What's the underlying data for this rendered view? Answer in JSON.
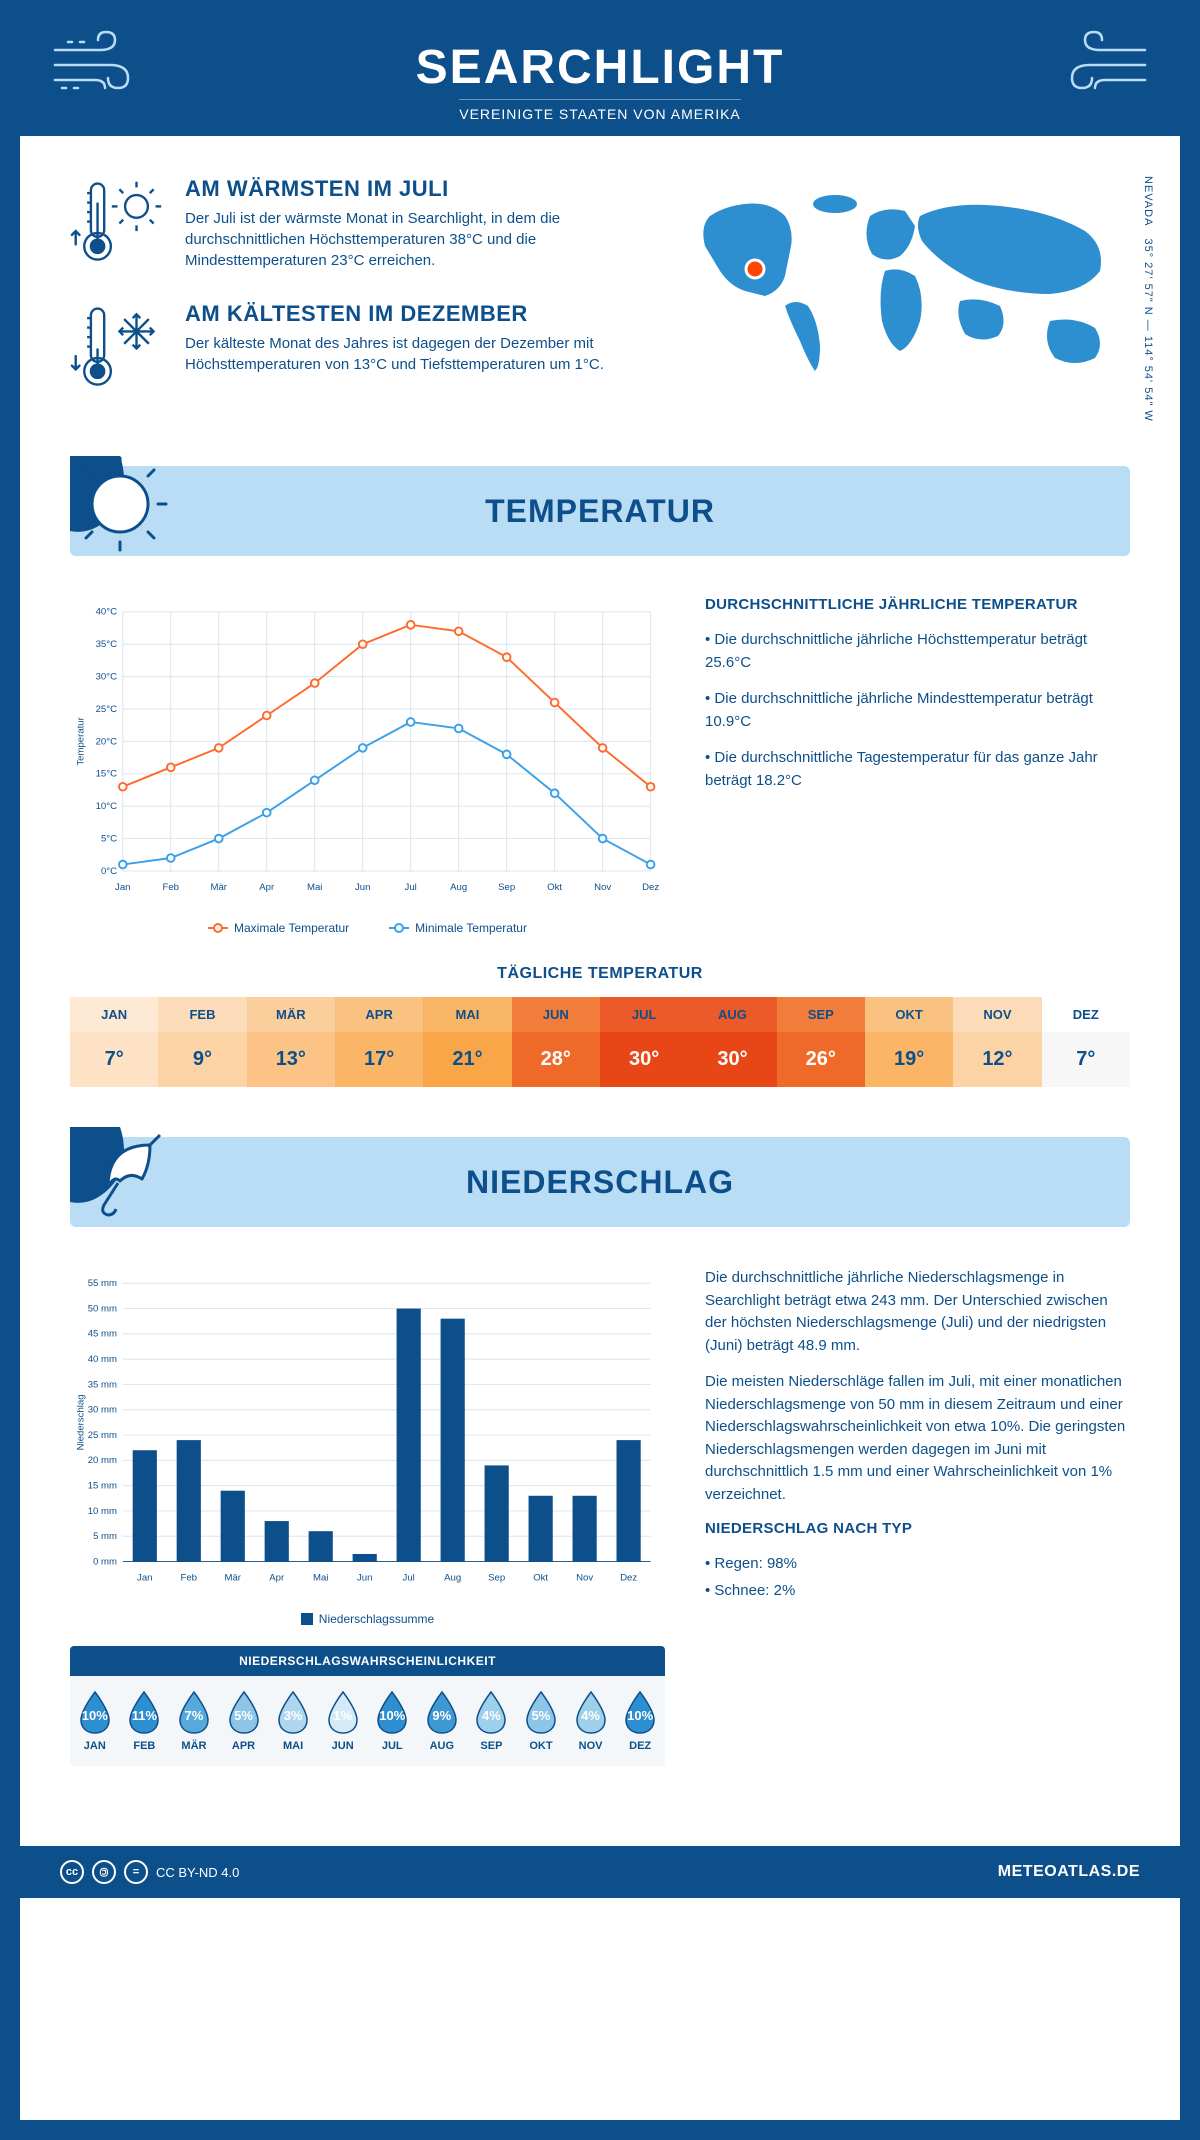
{
  "header": {
    "title": "SEARCHLIGHT",
    "subtitle": "VEREINIGTE STAATEN VON AMERIKA"
  },
  "location": {
    "state": "NEVADA",
    "coords": "35° 27' 57\" N — 114° 54' 54\" W",
    "marker_color": "#ff4500",
    "map_color": "#2e8fd0"
  },
  "summaries": {
    "warm": {
      "title": "AM WÄRMSTEN IM JULI",
      "text": "Der Juli ist der wärmste Monat in Searchlight, in dem die durchschnittlichen Höchsttemperaturen 38°C und die Mindesttemperaturen 23°C erreichen."
    },
    "cold": {
      "title": "AM KÄLTESTEN IM DEZEMBER",
      "text": "Der kälteste Monat des Jahres ist dagegen der Dezember mit Höchsttemperaturen von 13°C und Tiefsttemperaturen um 1°C."
    }
  },
  "temperature_section": {
    "banner_title": "TEMPERATUR",
    "chart": {
      "type": "line",
      "x_labels": [
        "Jan",
        "Feb",
        "Mär",
        "Apr",
        "Mai",
        "Jun",
        "Jul",
        "Aug",
        "Sep",
        "Okt",
        "Nov",
        "Dez"
      ],
      "y_ticks": [
        0,
        5,
        10,
        15,
        20,
        25,
        30,
        35,
        40
      ],
      "y_tick_labels": [
        "0°C",
        "5°C",
        "10°C",
        "15°C",
        "20°C",
        "25°C",
        "30°C",
        "35°C",
        "40°C"
      ],
      "y_axis_title": "Temperatur",
      "ylim": [
        0,
        40
      ],
      "grid_color": "#d8e4ee",
      "background_color": "#ffffff",
      "marker": "circle",
      "marker_fill": "#ffffff",
      "line_width": 2,
      "series": {
        "max": {
          "label": "Maximale Temperatur",
          "color": "#ff6a2c",
          "values": [
            13,
            16,
            19,
            24,
            29,
            35,
            38,
            37,
            33,
            26,
            19,
            13
          ]
        },
        "min": {
          "label": "Minimale Temperatur",
          "color": "#3aa0e8",
          "values": [
            1,
            2,
            5,
            9,
            14,
            19,
            23,
            22,
            18,
            12,
            5,
            1
          ]
        }
      }
    },
    "desc": {
      "heading": "DURCHSCHNITTLICHE JÄHRLICHE TEMPERATUR",
      "bullets": [
        "• Die durchschnittliche jährliche Höchsttemperatur beträgt 25.6°C",
        "• Die durchschnittliche jährliche Mindesttemperatur beträgt 10.9°C",
        "• Die durchschnittliche Tagestemperatur für das ganze Jahr beträgt 18.2°C"
      ]
    },
    "daily_table": {
      "heading": "TÄGLICHE TEMPERATUR",
      "months": [
        "JAN",
        "FEB",
        "MÄR",
        "APR",
        "MAI",
        "JUN",
        "JUL",
        "AUG",
        "SEP",
        "OKT",
        "NOV",
        "DEZ"
      ],
      "values": [
        "7°",
        "9°",
        "13°",
        "17°",
        "21°",
        "28°",
        "30°",
        "30°",
        "26°",
        "19°",
        "12°",
        "7°"
      ],
      "month_bg_colors": [
        "#fde9d4",
        "#fcdcb8",
        "#fbcf9c",
        "#fac281",
        "#f8b565",
        "#f27c3a",
        "#eb5a28",
        "#eb5a28",
        "#f27c3a",
        "#fac281",
        "#fcdcb8",
        "#ffffff"
      ],
      "value_bg_colors": [
        "#fde2c5",
        "#fcd3a5",
        "#fbc486",
        "#fab566",
        "#f8a647",
        "#ef6a29",
        "#e84617",
        "#e84617",
        "#ef6a29",
        "#fab566",
        "#fcd3a5",
        "#f7f7f7"
      ],
      "text_colors": [
        "#0d4f8b",
        "#0d4f8b",
        "#0d4f8b",
        "#0d4f8b",
        "#0d4f8b",
        "#ffffff",
        "#ffffff",
        "#ffffff",
        "#ffffff",
        "#0d4f8b",
        "#0d4f8b",
        "#0d4f8b"
      ]
    }
  },
  "precip_section": {
    "banner_title": "NIEDERSCHLAG",
    "chart": {
      "type": "bar",
      "x_labels": [
        "Jan",
        "Feb",
        "Mär",
        "Apr",
        "Mai",
        "Jun",
        "Jul",
        "Aug",
        "Sep",
        "Okt",
        "Nov",
        "Dez"
      ],
      "y_ticks": [
        0,
        5,
        10,
        15,
        20,
        25,
        30,
        35,
        40,
        45,
        50,
        55
      ],
      "y_tick_labels": [
        "0 mm",
        "5 mm",
        "10 mm",
        "15 mm",
        "20 mm",
        "25 mm",
        "30 mm",
        "35 mm",
        "40 mm",
        "45 mm",
        "50 mm",
        "55 mm"
      ],
      "y_axis_title": "Niederschlag",
      "ylim": [
        0,
        55
      ],
      "grid_color": "#d8e4ee",
      "bar_color": "#0d4f8b",
      "bar_width": 0.55,
      "values": [
        22,
        24,
        14,
        8,
        6,
        1.5,
        50,
        48,
        19,
        13,
        13,
        24
      ],
      "legend_label": "Niederschlagssumme"
    },
    "desc": {
      "para1": "Die durchschnittliche jährliche Niederschlagsmenge in Searchlight beträgt etwa 243 mm. Der Unterschied zwischen der höchsten Niederschlagsmenge (Juli) und der niedrigsten (Juni) beträgt 48.9 mm.",
      "para2": "Die meisten Niederschläge fallen im Juli, mit einer monatlichen Niederschlagsmenge von 50 mm in diesem Zeitraum und einer Niederschlagswahrscheinlichkeit von etwa 10%. Die geringsten Niederschlagsmengen werden dagegen im Juni mit durchschnittlich 1.5 mm und einer Wahrscheinlichkeit von 1% verzeichnet.",
      "type_heading": "NIEDERSCHLAG NACH TYP",
      "type_rain": "• Regen: 98%",
      "type_snow": "• Schnee: 2%"
    },
    "probability": {
      "title": "NIEDERSCHLAGSWAHRSCHEINLICHKEIT",
      "months": [
        "JAN",
        "FEB",
        "MÄR",
        "APR",
        "MAI",
        "JUN",
        "JUL",
        "AUG",
        "SEP",
        "OKT",
        "NOV",
        "DEZ"
      ],
      "values": [
        "10%",
        "11%",
        "7%",
        "5%",
        "3%",
        "1%",
        "10%",
        "9%",
        "4%",
        "5%",
        "4%",
        "10%"
      ],
      "fill_colors": [
        "#2e8fd0",
        "#2e8fd0",
        "#57a8db",
        "#8cc5e7",
        "#aed6ef",
        "#d5e9f6",
        "#2e8fd0",
        "#3d98d4",
        "#9ecfeb",
        "#8cc5e7",
        "#9ecfeb",
        "#2e8fd0"
      ]
    }
  },
  "footer": {
    "license": "CC BY-ND 4.0",
    "brand": "METEOATLAS.DE"
  },
  "colors": {
    "primary": "#0d4f8b",
    "banner_bg": "#b9ddf5",
    "icon_stroke": "#0d4f8b"
  }
}
